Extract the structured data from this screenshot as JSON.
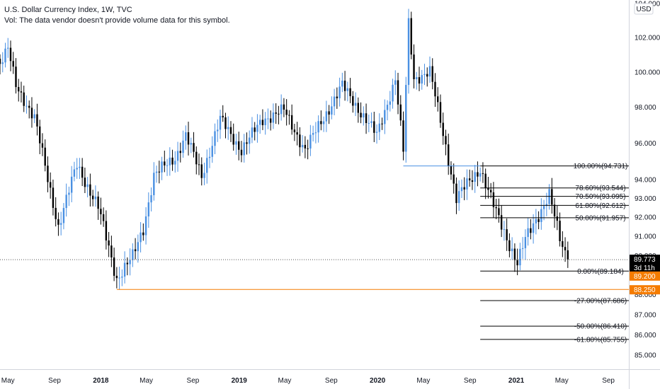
{
  "header": {
    "title": "U.S. Dollar Currency Index, 1W, TVC",
    "volume_note": "Vol: The data vendor doesn't provide volume data for this symbol."
  },
  "price_axis": {
    "currency": "USD",
    "tick_labels": [
      "104.000",
      "102.000",
      "100.000",
      "98.000",
      "96.000",
      "94.000",
      "93.000",
      "92.000",
      "91.000",
      "90.000",
      "88.000",
      "87.000",
      "86.000",
      "85.000"
    ]
  },
  "time_axis": {
    "labels": [
      "May",
      "Sep",
      "2018",
      "May",
      "Sep",
      "2019",
      "May",
      "Sep",
      "2020",
      "May",
      "Sep",
      "2021",
      "May",
      "Sep"
    ]
  },
  "price_tags": [
    {
      "label": "89.773",
      "sublabel": "3d 11h",
      "value": 89.773,
      "kind": "last",
      "color": "#000000"
    },
    {
      "label": "89.200",
      "value": 89.2,
      "kind": "level",
      "color": "#f57c00"
    },
    {
      "label": "88.250",
      "value": 88.25,
      "kind": "level",
      "color": "#f57c00"
    }
  ],
  "colors": {
    "up": "#4a90e2",
    "down": "#000000",
    "orange": "#f57c00",
    "blue_line": "#4a90e2",
    "text": "#131722",
    "axis_text": "#787b86"
  },
  "chart_data": {
    "type": "candlestick",
    "symbol": "U.S. Dollar Currency Index",
    "interval": "1W",
    "source": "TVC",
    "y_scale": "log",
    "x_range": [
      "2017-04-10",
      "2021-10-25"
    ],
    "y_range": [
      84.3,
      104.2
    ],
    "key_points": [
      {
        "date": "2017-04-10",
        "price": 100.5
      },
      {
        "date": "2017-05-01",
        "price": 101.3
      },
      {
        "date": "2017-05-22",
        "price": 99.2
      },
      {
        "date": "2017-07-10",
        "price": 97.4
      },
      {
        "date": "2017-08-14",
        "price": 94.0
      },
      {
        "date": "2017-09-11",
        "price": 91.5
      },
      {
        "date": "2017-10-30",
        "price": 94.8
      },
      {
        "date": "2017-12-25",
        "price": 92.5
      },
      {
        "date": "2018-02-12",
        "price": 88.8
      },
      {
        "date": "2018-03-26",
        "price": 89.9
      },
      {
        "date": "2018-04-23",
        "price": 91.4
      },
      {
        "date": "2018-05-21",
        "price": 94.2
      },
      {
        "date": "2018-07-16",
        "price": 95.2
      },
      {
        "date": "2018-08-13",
        "price": 96.4
      },
      {
        "date": "2018-09-24",
        "price": 94.2
      },
      {
        "date": "2018-11-12",
        "price": 97.3
      },
      {
        "date": "2019-01-07",
        "price": 95.6
      },
      {
        "date": "2019-03-04",
        "price": 97.3
      },
      {
        "date": "2019-04-29",
        "price": 97.8
      },
      {
        "date": "2019-06-24",
        "price": 95.6
      },
      {
        "date": "2019-09-30",
        "price": 99.2
      },
      {
        "date": "2019-12-30",
        "price": 96.4
      },
      {
        "date": "2020-02-17",
        "price": 99.6
      },
      {
        "date": "2020-03-09",
        "price": 95.5
      },
      {
        "date": "2020-03-23",
        "price": 102.8
      },
      {
        "date": "2020-04-06",
        "price": 99.6
      },
      {
        "date": "2020-05-18",
        "price": 100.0
      },
      {
        "date": "2020-07-27",
        "price": 93.0
      },
      {
        "date": "2020-09-28",
        "price": 94.6
      },
      {
        "date": "2020-11-09",
        "price": 92.2
      },
      {
        "date": "2021-01-04",
        "price": 89.6
      },
      {
        "date": "2021-01-25",
        "price": 90.8
      },
      {
        "date": "2021-03-29",
        "price": 93.2
      },
      {
        "date": "2021-04-26",
        "price": 90.8
      },
      {
        "date": "2021-05-17",
        "price": 89.773
      }
    ],
    "fibonacci": [
      {
        "label": "100.00%(94.731)",
        "value": 94.731
      },
      {
        "label": "78.60%(93.544)",
        "value": 93.544
      },
      {
        "label": "70.50%(93.095)",
        "value": 93.095
      },
      {
        "label": "61.80%(92.612)",
        "value": 92.612
      },
      {
        "label": "50.00%(91.957)",
        "value": 91.957
      },
      {
        "label": "0.00%(89.184)",
        "value": 89.184
      },
      {
        "label": "-27.00%(87.686)",
        "value": 87.686
      },
      {
        "label": "-50.00%(86.410)",
        "value": 86.41
      },
      {
        "label": "-61.80%(85.755)",
        "value": 85.755
      }
    ],
    "horizontal_levels": [
      {
        "value": 88.25,
        "color": "#f57c00"
      },
      {
        "value": 94.731,
        "color": "#4a90e2"
      }
    ],
    "last_price": 89.773
  }
}
